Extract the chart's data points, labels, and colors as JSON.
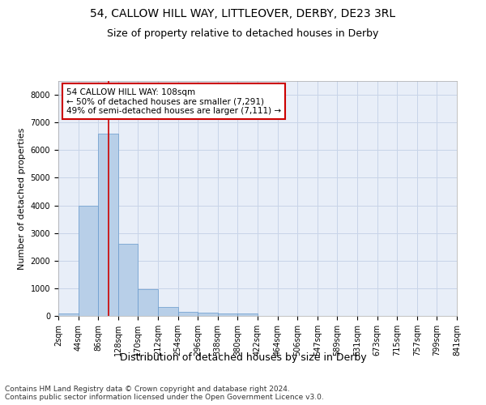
{
  "title1": "54, CALLOW HILL WAY, LITTLEOVER, DERBY, DE23 3RL",
  "title2": "Size of property relative to detached houses in Derby",
  "xlabel": "Distribution of detached houses by size in Derby",
  "ylabel": "Number of detached properties",
  "bar_values": [
    80,
    4000,
    6600,
    2620,
    960,
    330,
    140,
    130,
    80,
    80,
    0,
    0,
    0,
    0,
    0,
    0,
    0,
    0,
    0,
    0
  ],
  "bin_labels": [
    "2sqm",
    "44sqm",
    "86sqm",
    "128sqm",
    "170sqm",
    "212sqm",
    "254sqm",
    "296sqm",
    "338sqm",
    "380sqm",
    "422sqm",
    "464sqm",
    "506sqm",
    "547sqm",
    "589sqm",
    "631sqm",
    "673sqm",
    "715sqm",
    "757sqm",
    "799sqm",
    "841sqm"
  ],
  "bar_color": "#b8cfe8",
  "bar_edge_color": "#6699cc",
  "vline_color": "#cc0000",
  "annotation_line1": "54 CALLOW HILL WAY: 108sqm",
  "annotation_line2": "← 50% of detached houses are smaller (7,291)",
  "annotation_line3": "49% of semi-detached houses are larger (7,111) →",
  "annotation_box_color": "#ffffff",
  "annotation_border_color": "#cc0000",
  "grid_color": "#c8d4e8",
  "bg_color": "#e8eef8",
  "ylim": [
    0,
    8500
  ],
  "yticks": [
    0,
    1000,
    2000,
    3000,
    4000,
    5000,
    6000,
    7000,
    8000
  ],
  "footer": "Contains HM Land Registry data © Crown copyright and database right 2024.\nContains public sector information licensed under the Open Government Licence v3.0.",
  "title1_fontsize": 10,
  "title2_fontsize": 9,
  "xlabel_fontsize": 9,
  "ylabel_fontsize": 8,
  "tick_fontsize": 7,
  "annotation_fontsize": 7.5,
  "footer_fontsize": 6.5
}
